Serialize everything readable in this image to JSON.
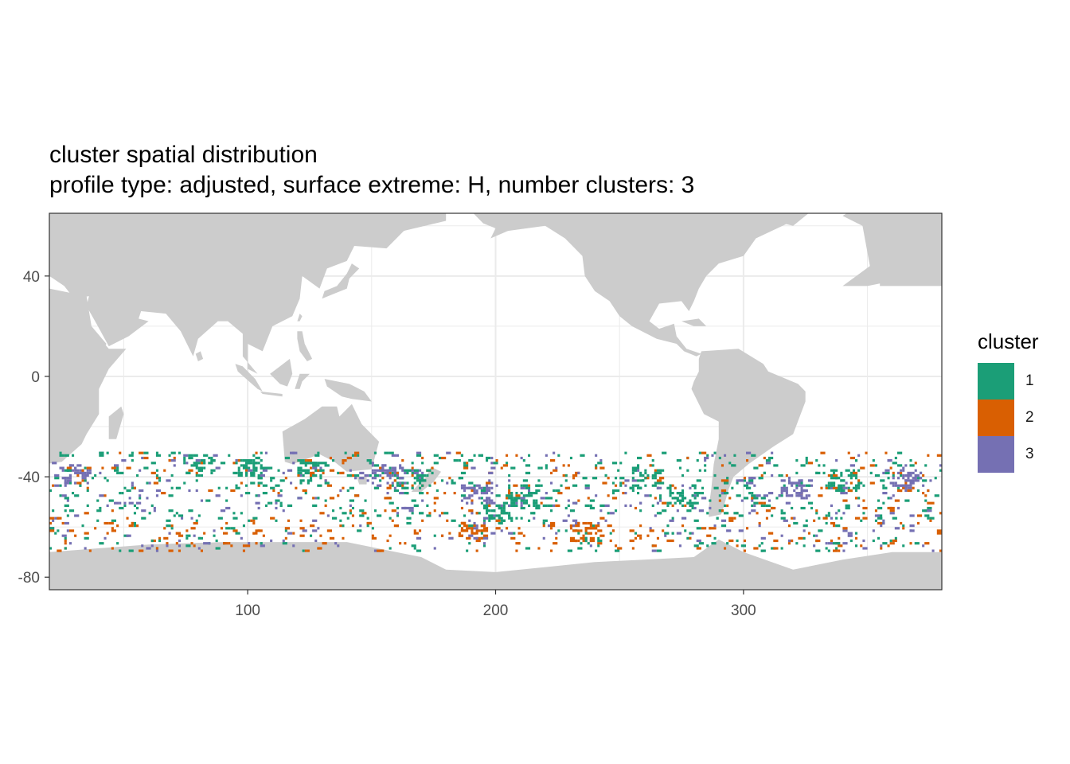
{
  "title": "cluster spatial distribution",
  "subtitle": "profile type: adjusted, surface extreme: H, number clusters: 3",
  "colors": {
    "land": "#cccccc",
    "panel": "#ffffff",
    "grid": "#ebebeb",
    "border": "#333333",
    "cluster_1": "#1b9e77",
    "cluster_2": "#d95f02",
    "cluster_3": "#7570b3"
  },
  "legend": {
    "title": "cluster",
    "items": [
      {
        "label": "1",
        "color": "#1b9e77"
      },
      {
        "label": "2",
        "color": "#d95f02"
      },
      {
        "label": "3",
        "color": "#7570b3"
      }
    ]
  },
  "chart_data": {
    "type": "heatmap",
    "x_ticks": [
      "100",
      "200",
      "300"
    ],
    "y_ticks": [
      "40",
      "0",
      "-40",
      "-80"
    ],
    "x_tick_values": [
      100,
      200,
      300
    ],
    "y_tick_values": [
      40,
      0,
      -40,
      -80
    ],
    "xlim": [
      20,
      380
    ],
    "ylim": [
      -85,
      65
    ],
    "cell_size_deg": 1,
    "lat_band": [
      -70,
      -30
    ],
    "legend_position": "right",
    "series": [
      {
        "name": "1",
        "cluster": 1,
        "color": "#1b9e77"
      },
      {
        "name": "2",
        "cluster": 2,
        "color": "#d95f02"
      },
      {
        "name": "3",
        "cluster": 3,
        "color": "#7570b3"
      }
    ],
    "hotspots": [
      {
        "lon": 80,
        "lat": -36,
        "cluster": 1
      },
      {
        "lon": 100,
        "lat": -37,
        "cluster": 1
      },
      {
        "lon": 125,
        "lat": -38,
        "cluster": 1
      },
      {
        "lon": 165,
        "lat": -42,
        "cluster": 1
      },
      {
        "lon": 192,
        "lat": -48,
        "cluster": 3
      },
      {
        "lon": 200,
        "lat": -55,
        "cluster": 1
      },
      {
        "lon": 210,
        "lat": -48,
        "cluster": 1
      },
      {
        "lon": 260,
        "lat": -42,
        "cluster": 1
      },
      {
        "lon": 275,
        "lat": -48,
        "cluster": 1
      },
      {
        "lon": 190,
        "lat": -62,
        "cluster": 2
      },
      {
        "lon": 235,
        "lat": -63,
        "cluster": 2
      },
      {
        "lon": 155,
        "lat": -40,
        "cluster": 3
      },
      {
        "lon": 320,
        "lat": -45,
        "cluster": 3
      },
      {
        "lon": 365,
        "lat": -42,
        "cluster": 3
      },
      {
        "lon": 30,
        "lat": -40,
        "cluster": 3
      },
      {
        "lon": 340,
        "lat": -42,
        "cluster": 1
      }
    ]
  }
}
